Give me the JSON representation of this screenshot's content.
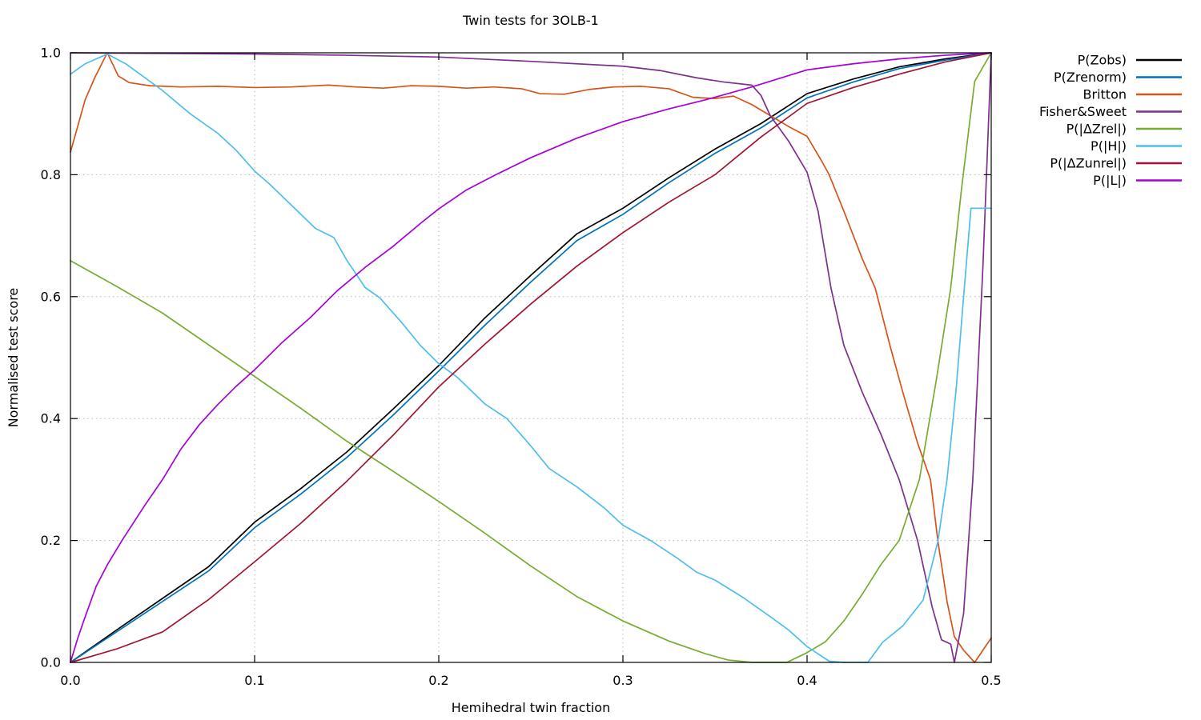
{
  "figure": {
    "title": "Twin tests for 3OLB-1",
    "xlabel": "Hemihedral twin fraction",
    "ylabel": "Normalised test score"
  },
  "chart_data": {
    "type": "line",
    "title": "Twin tests for 3OLB-1",
    "xlabel": "Hemihedral twin fraction",
    "ylabel": "Normalised test score",
    "xlim": [
      0.0,
      0.5
    ],
    "ylim": [
      0.0,
      1.0
    ],
    "xticks": [
      "0.0",
      "0.1",
      "0.2",
      "0.3",
      "0.4",
      "0.5"
    ],
    "yticks": [
      "0.0",
      "0.2",
      "0.4",
      "0.6",
      "0.8",
      "1.0"
    ],
    "grid": "dotted",
    "grid_color": "#b5b5b5",
    "legend_position": "right-outside",
    "series": [
      {
        "name": "P(Zobs)",
        "color": "#000000",
        "points": [
          [
            0,
            0
          ],
          [
            0.025,
            0.053
          ],
          [
            0.05,
            0.105
          ],
          [
            0.075,
            0.157
          ],
          [
            0.1,
            0.23
          ],
          [
            0.125,
            0.285
          ],
          [
            0.15,
            0.345
          ],
          [
            0.175,
            0.415
          ],
          [
            0.2,
            0.487
          ],
          [
            0.225,
            0.565
          ],
          [
            0.25,
            0.635
          ],
          [
            0.275,
            0.703
          ],
          [
            0.3,
            0.745
          ],
          [
            0.325,
            0.795
          ],
          [
            0.35,
            0.842
          ],
          [
            0.375,
            0.884
          ],
          [
            0.4,
            0.933
          ],
          [
            0.425,
            0.957
          ],
          [
            0.45,
            0.977
          ],
          [
            0.475,
            0.99
          ],
          [
            0.5,
            1
          ]
        ]
      },
      {
        "name": "P(Zrenorm)",
        "color": "#0072bd",
        "points": [
          [
            0,
            0
          ],
          [
            0.025,
            0.05
          ],
          [
            0.05,
            0.1
          ],
          [
            0.075,
            0.15
          ],
          [
            0.1,
            0.221
          ],
          [
            0.125,
            0.276
          ],
          [
            0.15,
            0.336
          ],
          [
            0.175,
            0.405
          ],
          [
            0.2,
            0.478
          ],
          [
            0.225,
            0.553
          ],
          [
            0.25,
            0.624
          ],
          [
            0.275,
            0.692
          ],
          [
            0.3,
            0.735
          ],
          [
            0.325,
            0.787
          ],
          [
            0.35,
            0.835
          ],
          [
            0.375,
            0.877
          ],
          [
            0.4,
            0.926
          ],
          [
            0.425,
            0.952
          ],
          [
            0.45,
            0.974
          ],
          [
            0.475,
            0.988
          ],
          [
            0.5,
            1
          ]
        ]
      },
      {
        "name": "Britton",
        "color": "#d95319",
        "points": [
          [
            0,
            0.837
          ],
          [
            0.004,
            0.88
          ],
          [
            0.008,
            0.923
          ],
          [
            0.013,
            0.958
          ],
          [
            0.02,
            1
          ],
          [
            0.026,
            0.962
          ],
          [
            0.032,
            0.951
          ],
          [
            0.043,
            0.946
          ],
          [
            0.06,
            0.944
          ],
          [
            0.08,
            0.945
          ],
          [
            0.1,
            0.943
          ],
          [
            0.12,
            0.944
          ],
          [
            0.14,
            0.947
          ],
          [
            0.155,
            0.944
          ],
          [
            0.17,
            0.942
          ],
          [
            0.185,
            0.946
          ],
          [
            0.2,
            0.945
          ],
          [
            0.215,
            0.942
          ],
          [
            0.23,
            0.944
          ],
          [
            0.245,
            0.941
          ],
          [
            0.255,
            0.933
          ],
          [
            0.268,
            0.932
          ],
          [
            0.282,
            0.94
          ],
          [
            0.295,
            0.944
          ],
          [
            0.31,
            0.945
          ],
          [
            0.325,
            0.941
          ],
          [
            0.338,
            0.927
          ],
          [
            0.35,
            0.925
          ],
          [
            0.36,
            0.929
          ],
          [
            0.37,
            0.915
          ],
          [
            0.38,
            0.897
          ],
          [
            0.39,
            0.879
          ],
          [
            0.4,
            0.863
          ],
          [
            0.408,
            0.822
          ],
          [
            0.412,
            0.8
          ],
          [
            0.42,
            0.74
          ],
          [
            0.43,
            0.662
          ],
          [
            0.437,
            0.614
          ],
          [
            0.445,
            0.52
          ],
          [
            0.452,
            0.443
          ],
          [
            0.46,
            0.36
          ],
          [
            0.467,
            0.3
          ],
          [
            0.471,
            0.2
          ],
          [
            0.476,
            0.1
          ],
          [
            0.48,
            0.042
          ],
          [
            0.485,
            0.02
          ],
          [
            0.491,
            0
          ],
          [
            0.5,
            0.04
          ]
        ]
      },
      {
        "name": "Fisher&Sweet",
        "color": "#7e2f8e",
        "points": [
          [
            0,
            1
          ],
          [
            0.05,
            0.999
          ],
          [
            0.1,
            0.998
          ],
          [
            0.15,
            0.996
          ],
          [
            0.2,
            0.993
          ],
          [
            0.25,
            0.986
          ],
          [
            0.3,
            0.978
          ],
          [
            0.32,
            0.971
          ],
          [
            0.34,
            0.959
          ],
          [
            0.355,
            0.952
          ],
          [
            0.37,
            0.947
          ],
          [
            0.375,
            0.93
          ],
          [
            0.38,
            0.897
          ],
          [
            0.39,
            0.855
          ],
          [
            0.4,
            0.804
          ],
          [
            0.406,
            0.74
          ],
          [
            0.413,
            0.614
          ],
          [
            0.42,
            0.52
          ],
          [
            0.43,
            0.443
          ],
          [
            0.44,
            0.375
          ],
          [
            0.45,
            0.3
          ],
          [
            0.46,
            0.2
          ],
          [
            0.468,
            0.09
          ],
          [
            0.473,
            0.037
          ],
          [
            0.478,
            0.03
          ],
          [
            0.48,
            0
          ],
          [
            0.485,
            0.08
          ],
          [
            0.49,
            0.3
          ],
          [
            0.4955,
            0.65
          ],
          [
            0.5,
            1
          ]
        ]
      },
      {
        "name": "P(|ΔZrel|)",
        "color": "#77ac30",
        "points": [
          [
            0,
            0.659
          ],
          [
            0.025,
            0.617
          ],
          [
            0.05,
            0.573
          ],
          [
            0.075,
            0.521
          ],
          [
            0.1,
            0.469
          ],
          [
            0.125,
            0.417
          ],
          [
            0.15,
            0.363
          ],
          [
            0.175,
            0.314
          ],
          [
            0.2,
            0.264
          ],
          [
            0.225,
            0.212
          ],
          [
            0.25,
            0.158
          ],
          [
            0.275,
            0.108
          ],
          [
            0.3,
            0.068
          ],
          [
            0.325,
            0.035
          ],
          [
            0.345,
            0.014
          ],
          [
            0.357,
            0.004
          ],
          [
            0.37,
            0
          ],
          [
            0.389,
            0
          ],
          [
            0.4,
            0.016
          ],
          [
            0.41,
            0.034
          ],
          [
            0.42,
            0.068
          ],
          [
            0.43,
            0.112
          ],
          [
            0.44,
            0.16
          ],
          [
            0.45,
            0.2
          ],
          [
            0.461,
            0.3
          ],
          [
            0.47,
            0.46
          ],
          [
            0.478,
            0.614
          ],
          [
            0.484,
            0.78
          ],
          [
            0.491,
            0.953
          ],
          [
            0.5,
            1
          ]
        ]
      },
      {
        "name": "P(|H|)",
        "color": "#4dbeee",
        "points": [
          [
            0,
            0.965
          ],
          [
            0.008,
            0.982
          ],
          [
            0.02,
            0.998
          ],
          [
            0.03,
            0.982
          ],
          [
            0.04,
            0.96
          ],
          [
            0.05,
            0.938
          ],
          [
            0.065,
            0.9
          ],
          [
            0.08,
            0.868
          ],
          [
            0.09,
            0.84
          ],
          [
            0.1,
            0.806
          ],
          [
            0.108,
            0.785
          ],
          [
            0.12,
            0.75
          ],
          [
            0.133,
            0.712
          ],
          [
            0.143,
            0.697
          ],
          [
            0.15,
            0.66
          ],
          [
            0.16,
            0.615
          ],
          [
            0.168,
            0.598
          ],
          [
            0.18,
            0.557
          ],
          [
            0.19,
            0.52
          ],
          [
            0.2,
            0.49
          ],
          [
            0.21,
            0.468
          ],
          [
            0.225,
            0.424
          ],
          [
            0.237,
            0.4
          ],
          [
            0.25,
            0.355
          ],
          [
            0.26,
            0.318
          ],
          [
            0.275,
            0.288
          ],
          [
            0.29,
            0.253
          ],
          [
            0.3,
            0.225
          ],
          [
            0.315,
            0.2
          ],
          [
            0.33,
            0.17
          ],
          [
            0.34,
            0.148
          ],
          [
            0.35,
            0.135
          ],
          [
            0.365,
            0.107
          ],
          [
            0.38,
            0.075
          ],
          [
            0.39,
            0.053
          ],
          [
            0.4,
            0.026
          ],
          [
            0.412,
            0.002
          ],
          [
            0.42,
            0
          ],
          [
            0.433,
            0
          ],
          [
            0.441,
            0.033
          ],
          [
            0.452,
            0.06
          ],
          [
            0.463,
            0.102
          ],
          [
            0.471,
            0.198
          ],
          [
            0.476,
            0.3
          ],
          [
            0.481,
            0.45
          ],
          [
            0.485,
            0.6
          ],
          [
            0.489,
            0.745
          ],
          [
            0.5,
            0.745
          ]
        ]
      },
      {
        "name": "P(|ΔZunrel|)",
        "color": "#a2142f",
        "points": [
          [
            0,
            0
          ],
          [
            0.025,
            0.022
          ],
          [
            0.05,
            0.05
          ],
          [
            0.075,
            0.103
          ],
          [
            0.1,
            0.165
          ],
          [
            0.125,
            0.228
          ],
          [
            0.15,
            0.297
          ],
          [
            0.175,
            0.372
          ],
          [
            0.2,
            0.452
          ],
          [
            0.225,
            0.522
          ],
          [
            0.25,
            0.588
          ],
          [
            0.275,
            0.65
          ],
          [
            0.3,
            0.705
          ],
          [
            0.325,
            0.755
          ],
          [
            0.35,
            0.8
          ],
          [
            0.375,
            0.862
          ],
          [
            0.4,
            0.917
          ],
          [
            0.425,
            0.943
          ],
          [
            0.45,
            0.965
          ],
          [
            0.475,
            0.985
          ],
          [
            0.5,
            1
          ]
        ]
      },
      {
        "name": "P(|L|)",
        "color": "#a800d8",
        "points": [
          [
            0,
            0
          ],
          [
            0.004,
            0.04
          ],
          [
            0.008,
            0.075
          ],
          [
            0.014,
            0.125
          ],
          [
            0.02,
            0.16
          ],
          [
            0.028,
            0.2
          ],
          [
            0.04,
            0.256
          ],
          [
            0.05,
            0.3
          ],
          [
            0.06,
            0.35
          ],
          [
            0.07,
            0.39
          ],
          [
            0.08,
            0.423
          ],
          [
            0.09,
            0.453
          ],
          [
            0.1,
            0.48
          ],
          [
            0.115,
            0.525
          ],
          [
            0.13,
            0.565
          ],
          [
            0.145,
            0.61
          ],
          [
            0.16,
            0.648
          ],
          [
            0.175,
            0.682
          ],
          [
            0.19,
            0.72
          ],
          [
            0.2,
            0.744
          ],
          [
            0.215,
            0.775
          ],
          [
            0.231,
            0.8
          ],
          [
            0.25,
            0.828
          ],
          [
            0.275,
            0.86
          ],
          [
            0.3,
            0.887
          ],
          [
            0.325,
            0.908
          ],
          [
            0.345,
            0.923
          ],
          [
            0.37,
            0.944
          ],
          [
            0.4,
            0.972
          ],
          [
            0.425,
            0.982
          ],
          [
            0.45,
            0.99
          ],
          [
            0.475,
            0.996
          ],
          [
            0.5,
            1
          ]
        ]
      }
    ]
  }
}
